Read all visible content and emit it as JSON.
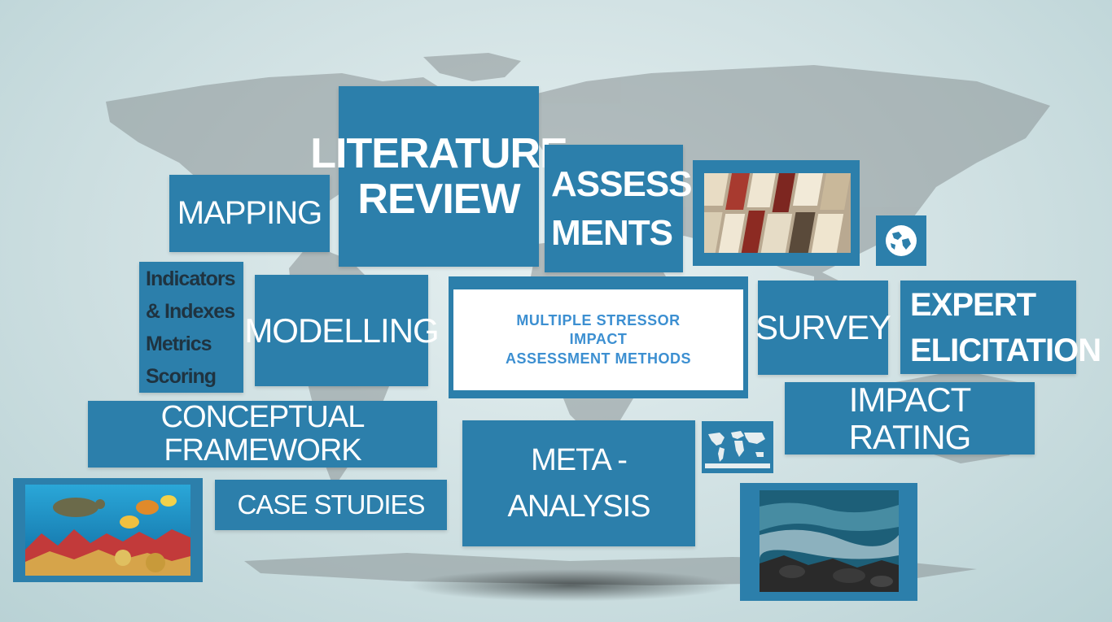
{
  "theme": {
    "tile_color": "#2c7fab",
    "text_color": "#ffffff",
    "center_text_color": "#3c8fd1",
    "background": "#cfe0e2"
  },
  "tiles": {
    "literature_review": "LITERATURE\nREVIEW",
    "assessments": "ASSESS-\nMENTS",
    "mapping": "MAPPING",
    "indicators": "Indicators\n& Indexes\nMetrics\nScoring",
    "modelling": "MODELLING",
    "center_title": "MULTIPLE STRESSOR\nIMPACT\nASSESSMENT METHODS",
    "survey": "SURVEY",
    "expert_elicitation": "EXPERT\nELICITATION",
    "conceptual_framework": "CONCEPTUAL FRAMEWORK",
    "case_studies": "CASE STUDIES",
    "meta_analysis": "META -\nANALYSIS",
    "impact_rating": "IMPACT RATING"
  },
  "images": {
    "books_photo": "books-photo",
    "globe_icon": "globe-icon",
    "world_map_thumbnail": "world-map-thumbnail",
    "coral_reef_photo": "coral-reef-photo",
    "rocky_shore_photo": "rocky-shore-photo"
  }
}
